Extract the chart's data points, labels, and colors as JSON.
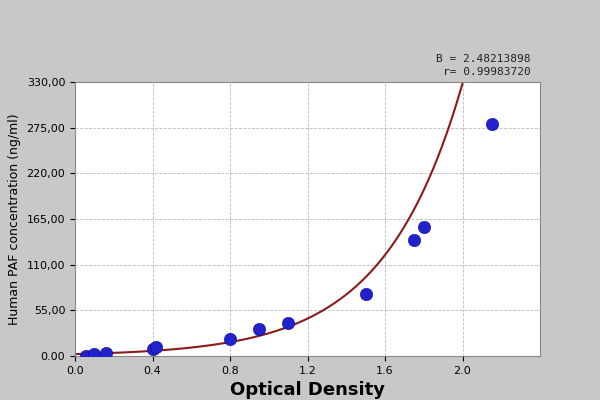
{
  "title": "",
  "xlabel": "Optical Density",
  "ylabel": "Human PAF concentration (ng/ml)",
  "equation_text": "B = 2.48213898\nr= 0.99983720",
  "x_data": [
    0.057,
    0.1,
    0.16,
    0.4,
    0.42,
    0.8,
    0.95,
    1.1,
    1.5,
    1.75,
    1.8,
    2.15
  ],
  "y_data": [
    0.0,
    200.0,
    400.0,
    900.0,
    1100.0,
    2000.0,
    3200.0,
    4000.0,
    7500.0,
    14000.0,
    15500.0,
    28000.0
  ],
  "scatter_color": "#2222cc",
  "line_color": "#8B1A1A",
  "background_color": "#c8c8c8",
  "plot_bg_color": "#ffffff",
  "xlim": [
    0.0,
    2.4
  ],
  "ylim": [
    0.0,
    33000.0
  ],
  "xticks": [
    0.0,
    0.4,
    0.8,
    1.2,
    1.6,
    2.0
  ],
  "yticks": [
    0,
    5500,
    11000,
    16500,
    22000,
    27500,
    33000
  ],
  "ytick_labels": [
    "0.00",
    "55,00",
    "110,00",
    "165,00",
    "220,00",
    "275,00",
    "330,00"
  ],
  "beta": 2.48213898,
  "r": 0.9998372,
  "grid_color": "#aaaaaa",
  "grid_style": "--",
  "marker_size": 9,
  "line_width": 1.5,
  "xlabel_fontsize": 13,
  "ylabel_fontsize": 9,
  "tick_fontsize": 8,
  "eq_fontsize": 8
}
